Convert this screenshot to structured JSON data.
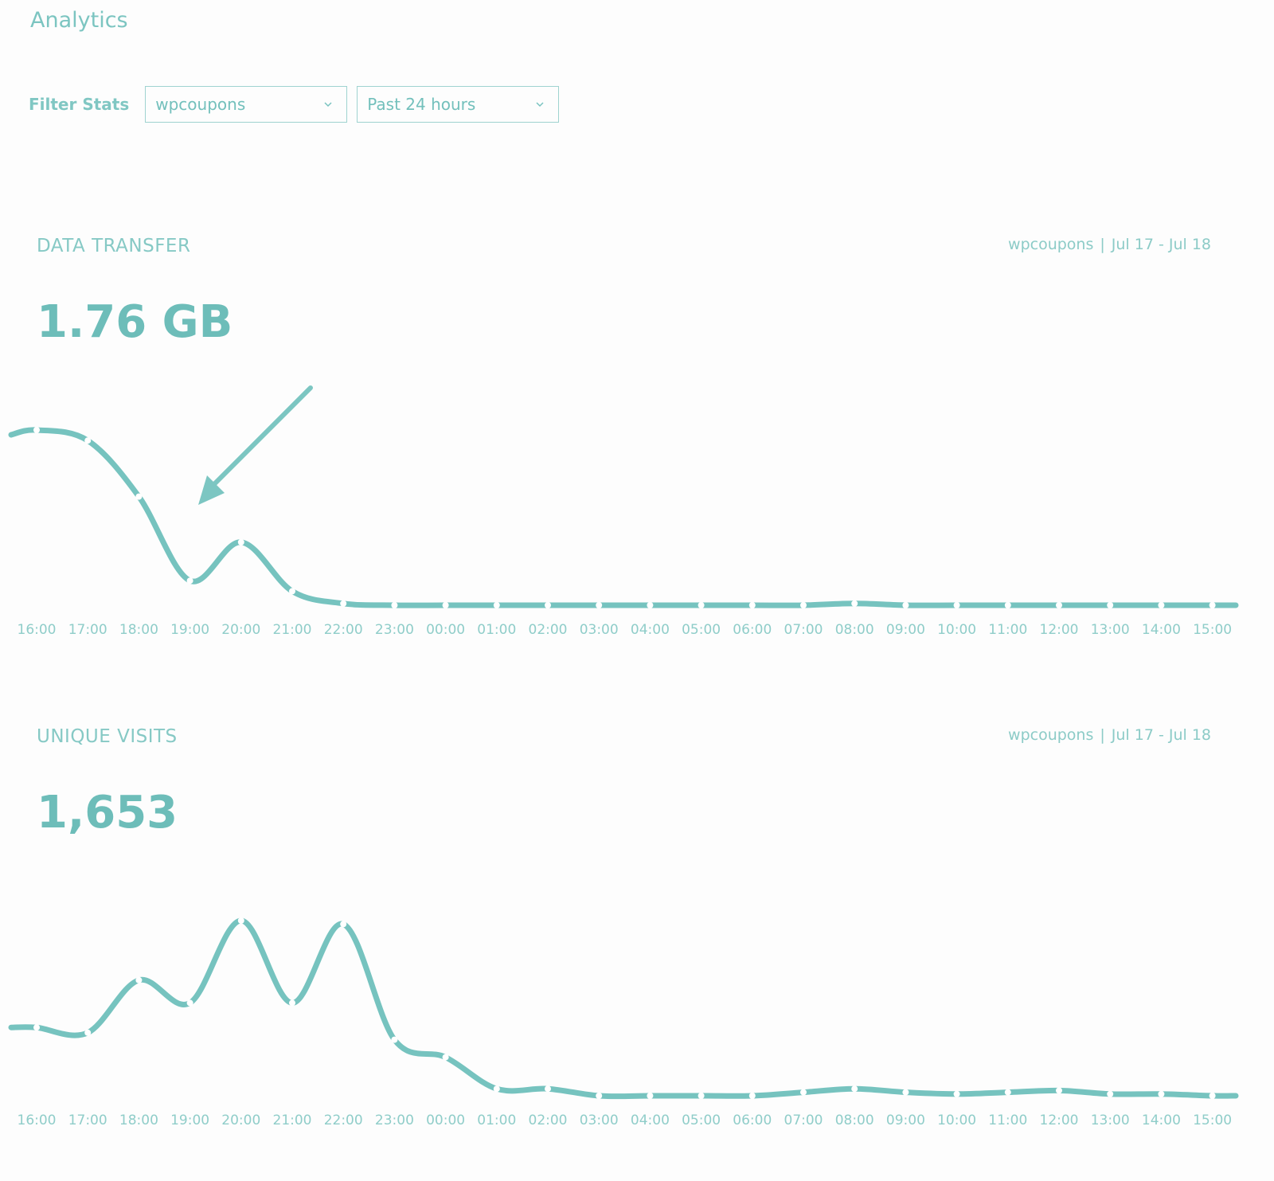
{
  "page": {
    "title": "Analytics"
  },
  "filters": {
    "label": "Filter Stats",
    "site_select": {
      "value": "wpcoupons"
    },
    "range_select": {
      "value": "Past 24 hours"
    }
  },
  "colors": {
    "accent": "#76c3bf",
    "text_light": "#8ccbc7"
  },
  "icons": {
    "select_chevron": "chevron-down-icon",
    "annotation": "arrow-annotation-icon"
  },
  "sections": [
    {
      "title": "DATA TRANSFER",
      "meta_site": "wpcoupons",
      "meta_separator": "|",
      "meta_range": "Jul 17 - Jul 18",
      "value": "1.76 GB"
    },
    {
      "title": "UNIQUE VISITS",
      "meta_site": "wpcoupons",
      "meta_separator": "|",
      "meta_range": "Jul 17 - Jul 18",
      "value": "1,653"
    }
  ],
  "chart_data": [
    {
      "type": "line",
      "title": "DATA TRANSFER",
      "x": [
        "16:00",
        "17:00",
        "18:00",
        "19:00",
        "20:00",
        "21:00",
        "22:00",
        "23:00",
        "00:00",
        "01:00",
        "02:00",
        "03:00",
        "04:00",
        "05:00",
        "06:00",
        "07:00",
        "08:00",
        "09:00",
        "10:00",
        "11:00",
        "12:00",
        "13:00",
        "14:00",
        "15:00"
      ],
      "values": [
        100,
        94,
        62,
        14,
        36,
        8,
        1,
        0,
        0,
        0,
        0,
        0,
        0,
        0,
        0,
        0,
        1,
        0,
        0,
        0,
        0,
        0,
        0,
        0
      ],
      "ylim": [
        0,
        100
      ],
      "unit": "relative",
      "grid": false,
      "annotation": "arrow"
    },
    {
      "type": "line",
      "title": "UNIQUE VISITS",
      "x": [
        "16:00",
        "17:00",
        "18:00",
        "19:00",
        "20:00",
        "21:00",
        "22:00",
        "23:00",
        "00:00",
        "01:00",
        "02:00",
        "03:00",
        "04:00",
        "05:00",
        "06:00",
        "07:00",
        "08:00",
        "09:00",
        "10:00",
        "11:00",
        "12:00",
        "13:00",
        "14:00",
        "15:00"
      ],
      "values": [
        39,
        36,
        66,
        53,
        100,
        53,
        98,
        32,
        22,
        4,
        4,
        0,
        0,
        0,
        0,
        2,
        4,
        2,
        1,
        2,
        3,
        1,
        1,
        0
      ],
      "ylim": [
        0,
        100
      ],
      "unit": "relative",
      "grid": false
    }
  ]
}
